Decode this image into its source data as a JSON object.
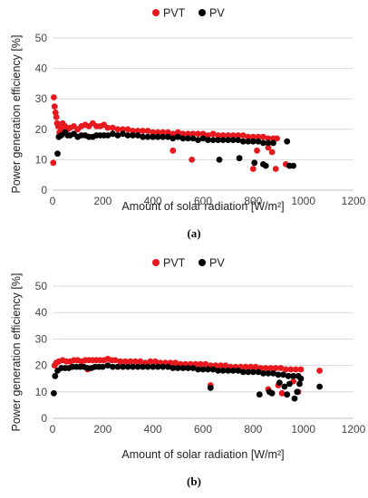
{
  "colors": {
    "pvt": "#e8191e",
    "pv": "#000000",
    "grid": "#d9d9d9"
  },
  "chart_data": [
    {
      "type": "scatter",
      "label": "(a)",
      "xlabel": "Amount of solar radiation [W/m²]",
      "ylabel": "Power generation efficiency [%]",
      "xlim": [
        0,
        1200
      ],
      "ylim": [
        0,
        50
      ],
      "xticks": [
        "0",
        "200",
        "400",
        "600",
        "800",
        "1000",
        "1200"
      ],
      "yticks": [
        "0",
        "10",
        "20",
        "30",
        "40",
        "50"
      ],
      "grid": "horizontal",
      "legend": "top-center",
      "series": [
        {
          "name": "PVT",
          "points": [
            [
              5,
              30.5
            ],
            [
              8,
              27.5
            ],
            [
              12,
              25.5
            ],
            [
              15,
              24
            ],
            [
              18,
              22
            ],
            [
              22,
              21
            ],
            [
              28,
              19
            ],
            [
              35,
              20
            ],
            [
              40,
              22
            ],
            [
              50,
              21
            ],
            [
              60,
              20
            ],
            [
              70,
              20.5
            ],
            [
              85,
              21
            ],
            [
              100,
              20
            ],
            [
              115,
              21
            ],
            [
              130,
              21.5
            ],
            [
              145,
              21
            ],
            [
              160,
              22
            ],
            [
              175,
              21
            ],
            [
              190,
              21
            ],
            [
              205,
              21.5
            ],
            [
              220,
              20.5
            ],
            [
              240,
              20.5
            ],
            [
              260,
              20
            ],
            [
              280,
              20
            ],
            [
              300,
              20
            ],
            [
              320,
              19.5
            ],
            [
              340,
              19.5
            ],
            [
              360,
              19.5
            ],
            [
              380,
              19.5
            ],
            [
              400,
              19
            ],
            [
              420,
              19
            ],
            [
              440,
              19
            ],
            [
              460,
              19
            ],
            [
              480,
              18.5
            ],
            [
              500,
              19
            ],
            [
              520,
              18.5
            ],
            [
              540,
              18.5
            ],
            [
              560,
              18.5
            ],
            [
              580,
              18.5
            ],
            [
              600,
              18.5
            ],
            [
              620,
              18
            ],
            [
              640,
              18.5
            ],
            [
              660,
              18
            ],
            [
              680,
              18
            ],
            [
              700,
              18
            ],
            [
              720,
              18
            ],
            [
              740,
              18
            ],
            [
              760,
              18
            ],
            [
              780,
              17.5
            ],
            [
              800,
              17.5
            ],
            [
              820,
              17.5
            ],
            [
              840,
              17.5
            ],
            [
              860,
              17
            ],
            [
              880,
              17
            ],
            [
              895,
              17
            ],
            [
              3,
              9
            ],
            [
              480,
              13
            ],
            [
              555,
              10
            ],
            [
              800,
              7
            ],
            [
              815,
              13
            ],
            [
              860,
              14
            ],
            [
              875,
              12.5
            ],
            [
              890,
              7
            ],
            [
              930,
              8.5
            ],
            [
              945,
              8
            ]
          ]
        },
        {
          "name": "PV",
          "points": [
            [
              20,
              12
            ],
            [
              25,
              17.5
            ],
            [
              35,
              18
            ],
            [
              50,
              19
            ],
            [
              60,
              18
            ],
            [
              70,
              18
            ],
            [
              85,
              18.5
            ],
            [
              100,
              17.5
            ],
            [
              115,
              18
            ],
            [
              130,
              18
            ],
            [
              145,
              17.5
            ],
            [
              160,
              17.5
            ],
            [
              175,
              18
            ],
            [
              190,
              18
            ],
            [
              205,
              18
            ],
            [
              220,
              18
            ],
            [
              240,
              18.5
            ],
            [
              260,
              18
            ],
            [
              280,
              18.5
            ],
            [
              300,
              18
            ],
            [
              320,
              18
            ],
            [
              340,
              18
            ],
            [
              360,
              17.5
            ],
            [
              380,
              17.5
            ],
            [
              400,
              17.5
            ],
            [
              420,
              17.5
            ],
            [
              440,
              17.5
            ],
            [
              460,
              17.5
            ],
            [
              480,
              17
            ],
            [
              500,
              17.5
            ],
            [
              520,
              17
            ],
            [
              540,
              17
            ],
            [
              560,
              17
            ],
            [
              580,
              16.5
            ],
            [
              600,
              17
            ],
            [
              620,
              16.5
            ],
            [
              640,
              16.5
            ],
            [
              660,
              16.5
            ],
            [
              680,
              16.5
            ],
            [
              700,
              16.5
            ],
            [
              720,
              16.5
            ],
            [
              740,
              16.5
            ],
            [
              760,
              16
            ],
            [
              780,
              16
            ],
            [
              800,
              16
            ],
            [
              820,
              16
            ],
            [
              840,
              15.5
            ],
            [
              860,
              15.5
            ],
            [
              880,
              15.5
            ],
            [
              665,
              10
            ],
            [
              745,
              10.5
            ],
            [
              805,
              9
            ],
            [
              840,
              8.5
            ],
            [
              850,
              8
            ],
            [
              935,
              16
            ],
            [
              945,
              8
            ],
            [
              960,
              8
            ]
          ]
        }
      ]
    },
    {
      "type": "scatter",
      "label": "(b)",
      "xlabel": "Amount of solar radiation [W/m²]",
      "ylabel": "Power generation efficiency [%]",
      "xlim": [
        0,
        1200
      ],
      "ylim": [
        0,
        50
      ],
      "xticks": [
        "0",
        "200",
        "400",
        "600",
        "800",
        "1000",
        "1200"
      ],
      "yticks": [
        "0",
        "10",
        "20",
        "30",
        "40",
        "50"
      ],
      "grid": "horizontal",
      "legend": "top-center",
      "series": [
        {
          "name": "PVT",
          "points": [
            [
              8,
              20
            ],
            [
              15,
              21
            ],
            [
              25,
              21.5
            ],
            [
              40,
              22
            ],
            [
              55,
              21.5
            ],
            [
              70,
              21.5
            ],
            [
              85,
              22
            ],
            [
              100,
              22
            ],
            [
              115,
              21.5
            ],
            [
              130,
              22
            ],
            [
              145,
              22
            ],
            [
              160,
              22
            ],
            [
              175,
              22
            ],
            [
              190,
              22
            ],
            [
              205,
              22
            ],
            [
              220,
              22.5
            ],
            [
              235,
              22
            ],
            [
              250,
              22
            ],
            [
              270,
              21.5
            ],
            [
              290,
              21.5
            ],
            [
              310,
              21.5
            ],
            [
              330,
              21.5
            ],
            [
              350,
              21.5
            ],
            [
              370,
              21
            ],
            [
              390,
              21.5
            ],
            [
              410,
              21.5
            ],
            [
              430,
              21
            ],
            [
              450,
              21
            ],
            [
              470,
              21
            ],
            [
              490,
              21
            ],
            [
              510,
              20.5
            ],
            [
              530,
              20.5
            ],
            [
              550,
              20.5
            ],
            [
              570,
              20.5
            ],
            [
              590,
              20.5
            ],
            [
              610,
              20.5
            ],
            [
              630,
              20
            ],
            [
              650,
              20
            ],
            [
              670,
              20
            ],
            [
              690,
              20
            ],
            [
              710,
              19.5
            ],
            [
              730,
              19.5
            ],
            [
              750,
              19.5
            ],
            [
              770,
              19.5
            ],
            [
              790,
              19.5
            ],
            [
              810,
              19.5
            ],
            [
              830,
              19
            ],
            [
              850,
              19
            ],
            [
              870,
              19
            ],
            [
              890,
              19
            ],
            [
              910,
              19
            ],
            [
              930,
              18.5
            ],
            [
              950,
              18.5
            ],
            [
              970,
              18.5
            ],
            [
              990,
              18.5
            ],
            [
              1065,
              18
            ],
            [
              140,
              18.5
            ],
            [
              630,
              12.5
            ],
            [
              860,
              11
            ],
            [
              900,
              12.5
            ],
            [
              915,
              9.5
            ],
            [
              960,
              14
            ],
            [
              980,
              10
            ]
          ]
        },
        {
          "name": "PV",
          "points": [
            [
              5,
              9.5
            ],
            [
              10,
              16
            ],
            [
              20,
              18
            ],
            [
              35,
              19
            ],
            [
              50,
              19
            ],
            [
              65,
              19
            ],
            [
              80,
              19.5
            ],
            [
              95,
              19.5
            ],
            [
              110,
              19.5
            ],
            [
              125,
              19.5
            ],
            [
              140,
              19
            ],
            [
              155,
              19
            ],
            [
              170,
              19.5
            ],
            [
              185,
              19.5
            ],
            [
              200,
              19.5
            ],
            [
              220,
              20
            ],
            [
              240,
              19.5
            ],
            [
              260,
              19.5
            ],
            [
              280,
              19.5
            ],
            [
              300,
              19.5
            ],
            [
              320,
              19.5
            ],
            [
              340,
              19.5
            ],
            [
              360,
              19.5
            ],
            [
              380,
              19.5
            ],
            [
              400,
              19.5
            ],
            [
              420,
              19.5
            ],
            [
              440,
              19.5
            ],
            [
              460,
              19.5
            ],
            [
              480,
              19
            ],
            [
              500,
              19
            ],
            [
              520,
              19
            ],
            [
              540,
              19
            ],
            [
              560,
              19
            ],
            [
              580,
              18.5
            ],
            [
              600,
              18.5
            ],
            [
              620,
              18.5
            ],
            [
              640,
              18.5
            ],
            [
              660,
              18
            ],
            [
              680,
              18
            ],
            [
              700,
              18
            ],
            [
              720,
              18
            ],
            [
              740,
              18
            ],
            [
              760,
              17.5
            ],
            [
              780,
              17.5
            ],
            [
              800,
              17.5
            ],
            [
              820,
              17.5
            ],
            [
              840,
              17
            ],
            [
              860,
              17
            ],
            [
              880,
              17
            ],
            [
              900,
              16.5
            ],
            [
              920,
              16.5
            ],
            [
              940,
              16
            ],
            [
              960,
              16
            ],
            [
              980,
              16
            ],
            [
              630,
              11.5
            ],
            [
              825,
              9
            ],
            [
              865,
              10
            ],
            [
              875,
              9.5
            ],
            [
              905,
              13.5
            ],
            [
              925,
              12
            ],
            [
              935,
              9
            ],
            [
              945,
              13
            ],
            [
              965,
              7.5
            ],
            [
              975,
              10
            ],
            [
              985,
              13
            ],
            [
              990,
              15
            ],
            [
              1065,
              12
            ]
          ]
        }
      ]
    }
  ]
}
